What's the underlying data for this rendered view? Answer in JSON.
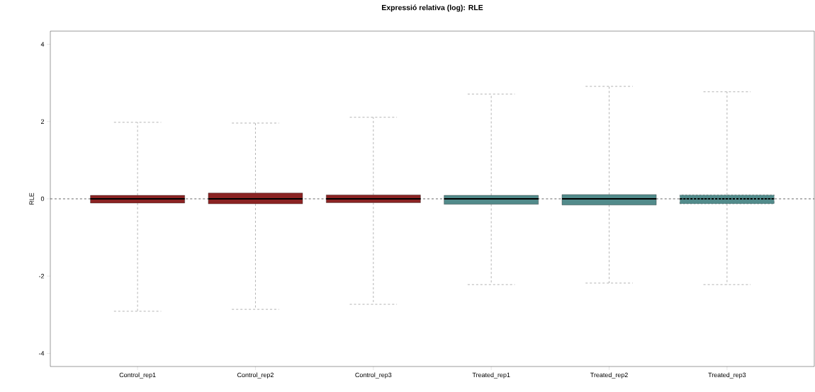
{
  "chart_data": {
    "type": "box",
    "title": "Expressió relativa (log): RLE",
    "ylabel": "RLE",
    "categories": [
      "Control_rep1",
      "Control_rep2",
      "Control_rep3",
      "Treated_rep1",
      "Treated_rep2",
      "Treated_rep3"
    ],
    "boxes": [
      {
        "low": -2.91,
        "q1": -0.11,
        "median": 0,
        "q3": 0.09,
        "high": 1.98
      },
      {
        "low": -2.86,
        "q1": -0.13,
        "median": 0,
        "q3": 0.15,
        "high": 1.96
      },
      {
        "low": -2.73,
        "q1": -0.1,
        "median": 0,
        "q3": 0.1,
        "high": 2.11
      },
      {
        "low": -2.22,
        "q1": -0.14,
        "median": 0,
        "q3": 0.09,
        "high": 2.71
      },
      {
        "low": -2.18,
        "q1": -0.16,
        "median": 0,
        "q3": 0.11,
        "high": 2.91
      },
      {
        "low": -2.22,
        "q1": -0.13,
        "median": 0,
        "q3": 0.1,
        "high": 2.77
      }
    ],
    "colors": [
      "#8b2323",
      "#8b2323",
      "#8b2323",
      "#528b8b",
      "#528b8b",
      "#528b8b"
    ],
    "ylim": [
      -4.34,
      4.34
    ],
    "yticks": [
      -4,
      -2,
      0,
      2,
      4
    ],
    "ref_lines": [
      {
        "axis": "y",
        "value": 0,
        "line_style": "dashed",
        "color": "#000000"
      }
    ]
  }
}
